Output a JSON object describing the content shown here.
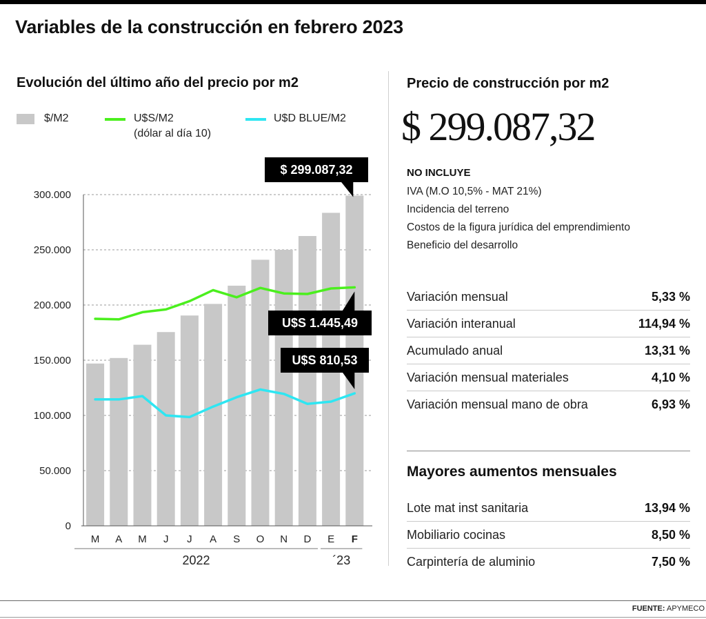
{
  "title": "Variables de la construcción en febrero 2023",
  "left": {
    "subtitle": "Evolución del último año del precio por m2",
    "legend": {
      "pesos": "$/M2",
      "usd": "U$S/M2",
      "usd_note": "(dólar al día 10)",
      "blue": "U$D BLUE/M2"
    }
  },
  "colors": {
    "bar": "#c8c8c8",
    "usd": "#4bef1e",
    "blue": "#2ee6f2",
    "callout_bg": "#000000",
    "callout_text": "#ffffff"
  },
  "chart_data": {
    "type": "bar",
    "categories": [
      "M",
      "A",
      "M",
      "J",
      "J",
      "A",
      "S",
      "O",
      "N",
      "D",
      "E",
      "F"
    ],
    "years": [
      {
        "label": "2022",
        "from": 0,
        "to": 9
      },
      {
        "label": "´23",
        "from": 10,
        "to": 11
      }
    ],
    "yticks": [
      "300.000",
      "250.000",
      "200.000",
      "150.000",
      "100.000",
      "50.000",
      "0"
    ],
    "ytick_values": [
      300000,
      250000,
      200000,
      150000,
      100000,
      50000,
      0
    ],
    "ylim": [
      0,
      300000
    ],
    "grid": true,
    "series": [
      {
        "name": "$/M2",
        "type": "bar",
        "values": [
          147000,
          152000,
          164000,
          175500,
          190500,
          201000,
          217500,
          241000,
          250000,
          262500,
          283500,
          299087.32
        ]
      },
      {
        "name": "U$S/M2",
        "type": "line",
        "values": [
          187500,
          187000,
          193500,
          196000,
          203500,
          213500,
          207000,
          215500,
          210500,
          210000,
          215000,
          216000
        ]
      },
      {
        "name": "U$D BLUE/M2",
        "type": "line",
        "values": [
          114500,
          114500,
          117500,
          100000,
          98500,
          108000,
          116500,
          123500,
          119500,
          110500,
          112500,
          120000
        ]
      }
    ],
    "callouts": [
      {
        "series": "$/M2",
        "text": "$ 299.087,32"
      },
      {
        "series": "U$S/M2",
        "text": "U$S 1.445,49"
      },
      {
        "series": "U$D BLUE/M2",
        "text": "U$S 810,53"
      }
    ]
  },
  "right": {
    "subtitle": "Precio de construcción por m2",
    "price": "$ 299.087,32",
    "excludes_title": "NO INCLUYE",
    "excludes": [
      "IVA (M.O 10,5% - MAT 21%)",
      "Incidencia del terreno",
      "Costos de la figura jurídica del emprendimiento",
      "Beneficio del desarrollo"
    ],
    "stats": [
      {
        "label": "Variación mensual",
        "value": "5,33 %"
      },
      {
        "label": "Variación interanual",
        "value": "114,94 %"
      },
      {
        "label": "Acumulado anual",
        "value": "13,31 %"
      },
      {
        "label": "Variación mensual materiales",
        "value": "4,10 %"
      },
      {
        "label": "Variación mensual mano de obra",
        "value": "6,93 %"
      }
    ],
    "top_increases_title": "Mayores aumentos mensuales",
    "top_increases": [
      {
        "label": "Lote mat inst sanitaria",
        "value": "13,94 %"
      },
      {
        "label": "Mobiliario cocinas",
        "value": "8,50 %"
      },
      {
        "label": "Carpintería de aluminio",
        "value": "7,50 %"
      }
    ]
  },
  "source": {
    "label": "FUENTE:",
    "name": "APYMECO"
  }
}
